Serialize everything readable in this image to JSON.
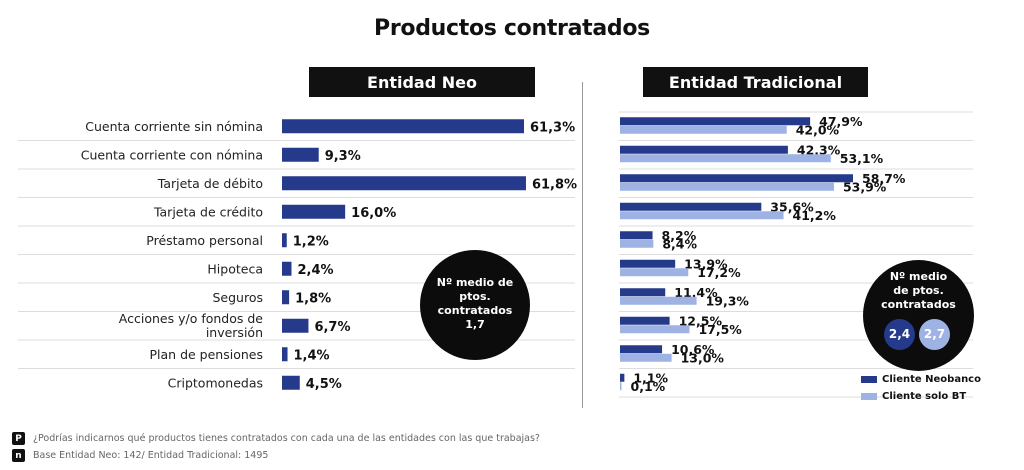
{
  "title": "Productos contratados",
  "footer": {
    "question_icon": "P",
    "question": "¿Podrías indicarnos qué productos tienes contratados con cada una de las entidades con las que trabajas?",
    "base_icon": "n",
    "base": "Base Entidad Neo: 142/ Entidad Tradicional: 1495"
  },
  "chart_data": [
    {
      "type": "bar",
      "orientation": "horizontal",
      "title": "Entidad Neo",
      "categories": [
        "Cuenta corriente sin nómina",
        "Cuenta corriente con nómina",
        "Tarjeta de débito",
        "Tarjeta de crédito",
        "Préstamo personal",
        "Hipoteca",
        "Seguros",
        "Acciones y/o fondos de inversión",
        "Plan de pensiones",
        "Criptomonedas"
      ],
      "values": [
        61.3,
        9.3,
        61.8,
        16.0,
        1.2,
        2.4,
        1.8,
        6.7,
        1.4,
        4.5
      ],
      "data_labels": [
        "61,3%",
        "9,3%",
        "61,8%",
        "16,0%",
        "1,2%",
        "2,4%",
        "1,8%",
        "6,7%",
        "1,4%",
        "4,5%"
      ],
      "xlim": [
        0,
        70
      ],
      "color": "#253a8a",
      "annotation": {
        "label": "Nº medio de ptos. contratados",
        "value": "1,7"
      }
    },
    {
      "type": "bar",
      "orientation": "horizontal",
      "title": "Entidad Tradicional",
      "categories": [
        "Cuenta corriente sin nómina",
        "Cuenta corriente con nómina",
        "Tarjeta de débito",
        "Tarjeta de crédito",
        "Préstamo personal",
        "Hipoteca",
        "Seguros",
        "Acciones y/o fondos de inversión",
        "Plan de pensiones",
        "Criptomonedas"
      ],
      "xlim": [
        0,
        70
      ],
      "legend": "bottom-right",
      "series": [
        {
          "name": "Cliente Neobanco",
          "color": "#253a8a",
          "values": [
            47.9,
            42.3,
            58.7,
            35.6,
            8.2,
            13.9,
            11.4,
            12.5,
            10.6,
            1.1
          ],
          "data_labels": [
            "47,9%",
            "42,3%",
            "58,7%",
            "35,6%",
            "8,2%",
            "13,9%",
            "11,4%",
            "12,5%",
            "10,6%",
            "1,1%"
          ]
        },
        {
          "name": "Cliente solo BT",
          "color": "#9eb2e4",
          "values": [
            42.0,
            53.1,
            53.9,
            41.2,
            8.4,
            17.2,
            19.3,
            17.5,
            13.0,
            0.1
          ],
          "data_labels": [
            "42,0%",
            "53,1%",
            "53,9%",
            "41,2%",
            "8,4%",
            "17,2%",
            "19,3%",
            "17,5%",
            "13,0%",
            "0,1%"
          ]
        }
      ],
      "annotation": {
        "label": "Nº medio de ptos. contratados",
        "values": [
          "2,4",
          "2,7"
        ]
      }
    }
  ]
}
